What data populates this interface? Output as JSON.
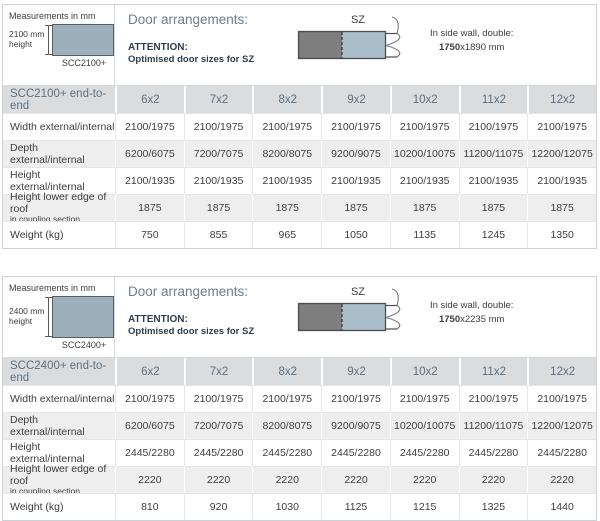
{
  "colors": {
    "header_bg": "#dadcde",
    "stripe_bg": "#eeeeef",
    "header_text": "#5d7081",
    "door_title_text": "#6b7e8f",
    "attention_text": "#2f3e4a",
    "body_text": "#3d3d3d",
    "panel_fill": "#9db0b9",
    "door_left_fill": "#7e7e7e",
    "door_right_fill": "#a9bec9"
  },
  "blocks": [
    {
      "info": {
        "measurements_note": "Measurements in mm",
        "height_label": "2100 mm height",
        "model_label": "SCC2100+"
      },
      "door": {
        "title": "Door arrangements:",
        "attention_label": "ATTENTION:",
        "attention_note": "Optimised door sizes for SZ",
        "diagram_label": "SZ",
        "side_note_line1": "In side wall, double:",
        "side_note_bold": "1750",
        "side_note_rest": "x1890 mm"
      },
      "table": {
        "header": [
          "SCC2100+ end-to-end",
          "6x2",
          "7x2",
          "8x2",
          "9x2",
          "10x2",
          "11x2",
          "12x2"
        ],
        "rows": [
          {
            "label": "Width external/internal",
            "sublabel": "",
            "values": [
              "2100/1975",
              "2100/1975",
              "2100/1975",
              "2100/1975",
              "2100/1975",
              "2100/1975",
              "2100/1975"
            ]
          },
          {
            "label": "Depth external/internal",
            "sublabel": "",
            "values": [
              "6200/6075",
              "7200/7075",
              "8200/8075",
              "9200/9075",
              "10200/10075",
              "11200/11075",
              "12200/12075"
            ]
          },
          {
            "label": "Height external/internal",
            "sublabel": "",
            "values": [
              "2100/1935",
              "2100/1935",
              "2100/1935",
              "2100/1935",
              "2100/1935",
              "2100/1935",
              "2100/1935"
            ]
          },
          {
            "label": "Height lower edge of roof",
            "sublabel": "in coupling section",
            "values": [
              "1875",
              "1875",
              "1875",
              "1875",
              "1875",
              "1875",
              "1875"
            ]
          },
          {
            "label": "Weight (kg)",
            "sublabel": "",
            "values": [
              "750",
              "855",
              "965",
              "1050",
              "1135",
              "1245",
              "1350"
            ]
          }
        ]
      }
    },
    {
      "info": {
        "measurements_note": "Measurements in mm",
        "height_label": "2400 mm height",
        "model_label": "SCC2400+"
      },
      "door": {
        "title": "Door arrangements:",
        "attention_label": "ATTENTION:",
        "attention_note": "Optimised door sizes for SZ",
        "diagram_label": "SZ",
        "side_note_line1": "In side wall, double:",
        "side_note_bold": "1750",
        "side_note_rest": "x2235 mm"
      },
      "table": {
        "header": [
          "SCC2400+ end-to-end",
          "6x2",
          "7x2",
          "8x2",
          "9x2",
          "10x2",
          "11x2",
          "12x2"
        ],
        "rows": [
          {
            "label": "Width external/internal",
            "sublabel": "",
            "values": [
              "2100/1975",
              "2100/1975",
              "2100/1975",
              "2100/1975",
              "2100/1975",
              "2100/1975",
              "2100/1975"
            ]
          },
          {
            "label": "Depth external/internal",
            "sublabel": "",
            "values": [
              "6200/6075",
              "7200/7075",
              "8200/8075",
              "9200/9075",
              "10200/10075",
              "11200/11075",
              "12200/12075"
            ]
          },
          {
            "label": "Height external/internal",
            "sublabel": "",
            "values": [
              "2445/2280",
              "2445/2280",
              "2445/2280",
              "2445/2280",
              "2445/2280",
              "2445/2280",
              "2445/2280"
            ]
          },
          {
            "label": "Height lower edge of roof",
            "sublabel": "in coupling section",
            "values": [
              "2220",
              "2220",
              "2220",
              "2220",
              "2220",
              "2220",
              "2220"
            ]
          },
          {
            "label": "Weight (kg)",
            "sublabel": "",
            "values": [
              "810",
              "920",
              "1030",
              "1125",
              "1215",
              "1325",
              "1440"
            ]
          }
        ]
      }
    }
  ]
}
